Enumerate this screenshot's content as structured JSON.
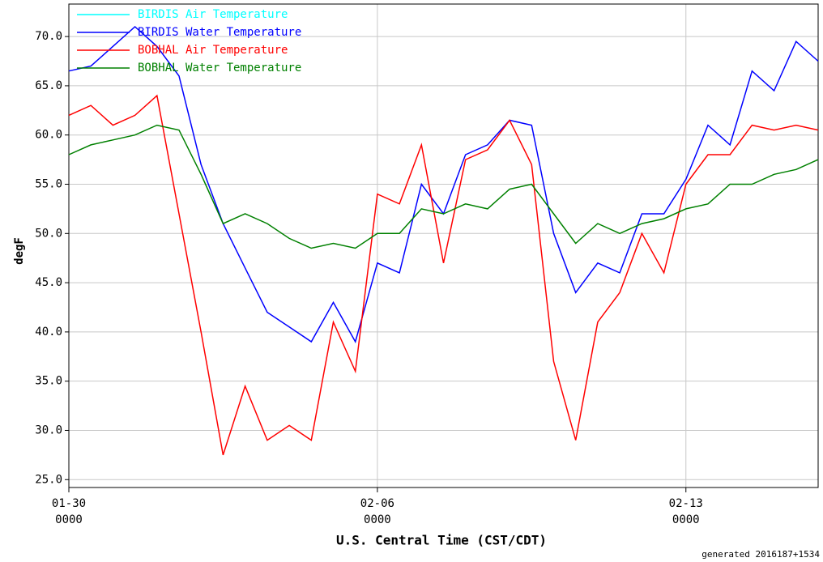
{
  "chart_data": {
    "type": "line",
    "ylabel": "degF",
    "xlabel": "U.S. Central Time (CST/CDT)",
    "footnote": "generated 2016187+1534",
    "x": [
      "01-30 0000",
      "01-30 1200",
      "01-31 0000",
      "01-31 1200",
      "02-01 0000",
      "02-01 1200",
      "02-02 0000",
      "02-02 1200",
      "02-03 0000",
      "02-03 1200",
      "02-04 0000",
      "02-04 1200",
      "02-05 0000",
      "02-05 1200",
      "02-06 0000",
      "02-06 1200",
      "02-07 0000",
      "02-07 1200",
      "02-08 0000",
      "02-08 1200",
      "02-09 0000",
      "02-09 1200",
      "02-10 0000",
      "02-10 1200",
      "02-11 0000",
      "02-11 1200",
      "02-12 0000",
      "02-12 1200",
      "02-13 0000",
      "02-13 1200",
      "02-14 0000",
      "02-14 1200",
      "02-15 0000",
      "02-15 1200",
      "02-16 0000"
    ],
    "xticks": [
      {
        "value": "01-30 0000",
        "label": "01-30\n0000"
      },
      {
        "value": "02-06 0000",
        "label": "02-06\n0000"
      },
      {
        "value": "02-13 0000",
        "label": "02-13\n0000"
      }
    ],
    "ylim": [
      24.2,
      73.3
    ],
    "yticks": [
      {
        "value": 25,
        "label": "25.0"
      },
      {
        "value": 30,
        "label": "30.0"
      },
      {
        "value": 35,
        "label": "35.0"
      },
      {
        "value": 40,
        "label": "40.0"
      },
      {
        "value": 45,
        "label": "45.0"
      },
      {
        "value": 50,
        "label": "50.0"
      },
      {
        "value": 55,
        "label": "55.0"
      },
      {
        "value": 60,
        "label": "60.0"
      },
      {
        "value": 65,
        "label": "65.0"
      },
      {
        "value": 70,
        "label": "70.0"
      }
    ],
    "grid": true,
    "legend": "upper left",
    "series": [
      {
        "name": "BIRDIS Air Temperature",
        "color": "#00ffff",
        "values": [
          null,
          null,
          null,
          null,
          null,
          null,
          null,
          null,
          null,
          null,
          null,
          null,
          null,
          null,
          null,
          null,
          null,
          null,
          null,
          null,
          null,
          null,
          null,
          null,
          null,
          null,
          null,
          null,
          null,
          null,
          null,
          null,
          null,
          null,
          null
        ]
      },
      {
        "name": "BIRDIS Water Temperature",
        "color": "#0000ff",
        "values": [
          66.5,
          67,
          69,
          71,
          69,
          66,
          57,
          51,
          46.5,
          42,
          40.5,
          39,
          43,
          39,
          47,
          46,
          55,
          52,
          58,
          59,
          61.5,
          61,
          50,
          44,
          47,
          46,
          52,
          52,
          55.5,
          61,
          59,
          66.5,
          64.5,
          69.5,
          67.5
        ]
      },
      {
        "name": "BOBHAL Air Temperature",
        "color": "#ff0000",
        "values": [
          62,
          63,
          61,
          62,
          64,
          52,
          40,
          27.5,
          34.5,
          29,
          30.5,
          29,
          41,
          36,
          54,
          53,
          59,
          47,
          57.5,
          58.5,
          61.5,
          57,
          37,
          29,
          41,
          44,
          50,
          46,
          55,
          58,
          58,
          61,
          60.5,
          61,
          60.5
        ]
      },
      {
        "name": "BOBHAL Water Temperature",
        "color": "#008000",
        "values": [
          58,
          59,
          59.5,
          60,
          61,
          60.5,
          56,
          51,
          52,
          51,
          49.5,
          48.5,
          49,
          48.5,
          50,
          50,
          52.5,
          52,
          53,
          52.5,
          54.5,
          55,
          52,
          49,
          51,
          50,
          51,
          51.5,
          52.5,
          53,
          55,
          55,
          56,
          56.5,
          57.5
        ]
      }
    ]
  }
}
